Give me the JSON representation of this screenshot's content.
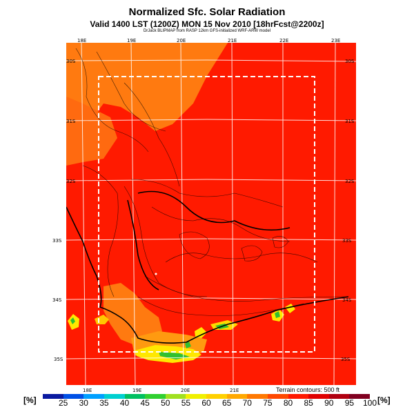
{
  "title": "Normalized Sfc. Solar Radiation",
  "subtitle": "Valid 1400 LST (1200Z) MON 15 Nov 2010 [18hrFcst@2200z]",
  "credit": "DrJack BLIPMAP from RASP 12km GFS-initialized WRF-ARW model",
  "terrain_note": "Terrain contours: 500 ft",
  "legend": {
    "unit_left": "[%]",
    "unit_right": "[%]",
    "ticks": [
      "25",
      "30",
      "35",
      "40",
      "45",
      "50",
      "55",
      "60",
      "65",
      "70",
      "75",
      "80",
      "85",
      "90",
      "95",
      "100"
    ],
    "colors": [
      "#0a1aa0",
      "#0050e6",
      "#00a0ff",
      "#00d0d0",
      "#00c060",
      "#30d030",
      "#a0e020",
      "#f0f000",
      "#ffd000",
      "#ffa800",
      "#ff7800",
      "#ff4800",
      "#ff1800",
      "#e00000",
      "#b00010",
      "#800020"
    ]
  },
  "longitude_labels": [
    "18E",
    "19E",
    "20E",
    "21E",
    "22E",
    "23E"
  ],
  "latitude_labels": [
    "30S",
    "31S",
    "32S",
    "33S",
    "34S",
    "35S"
  ],
  "map_colors": {
    "background": "#ff1a00",
    "orange": "#ff7a10",
    "yellow": "#ffe800",
    "green": "#30c030"
  }
}
